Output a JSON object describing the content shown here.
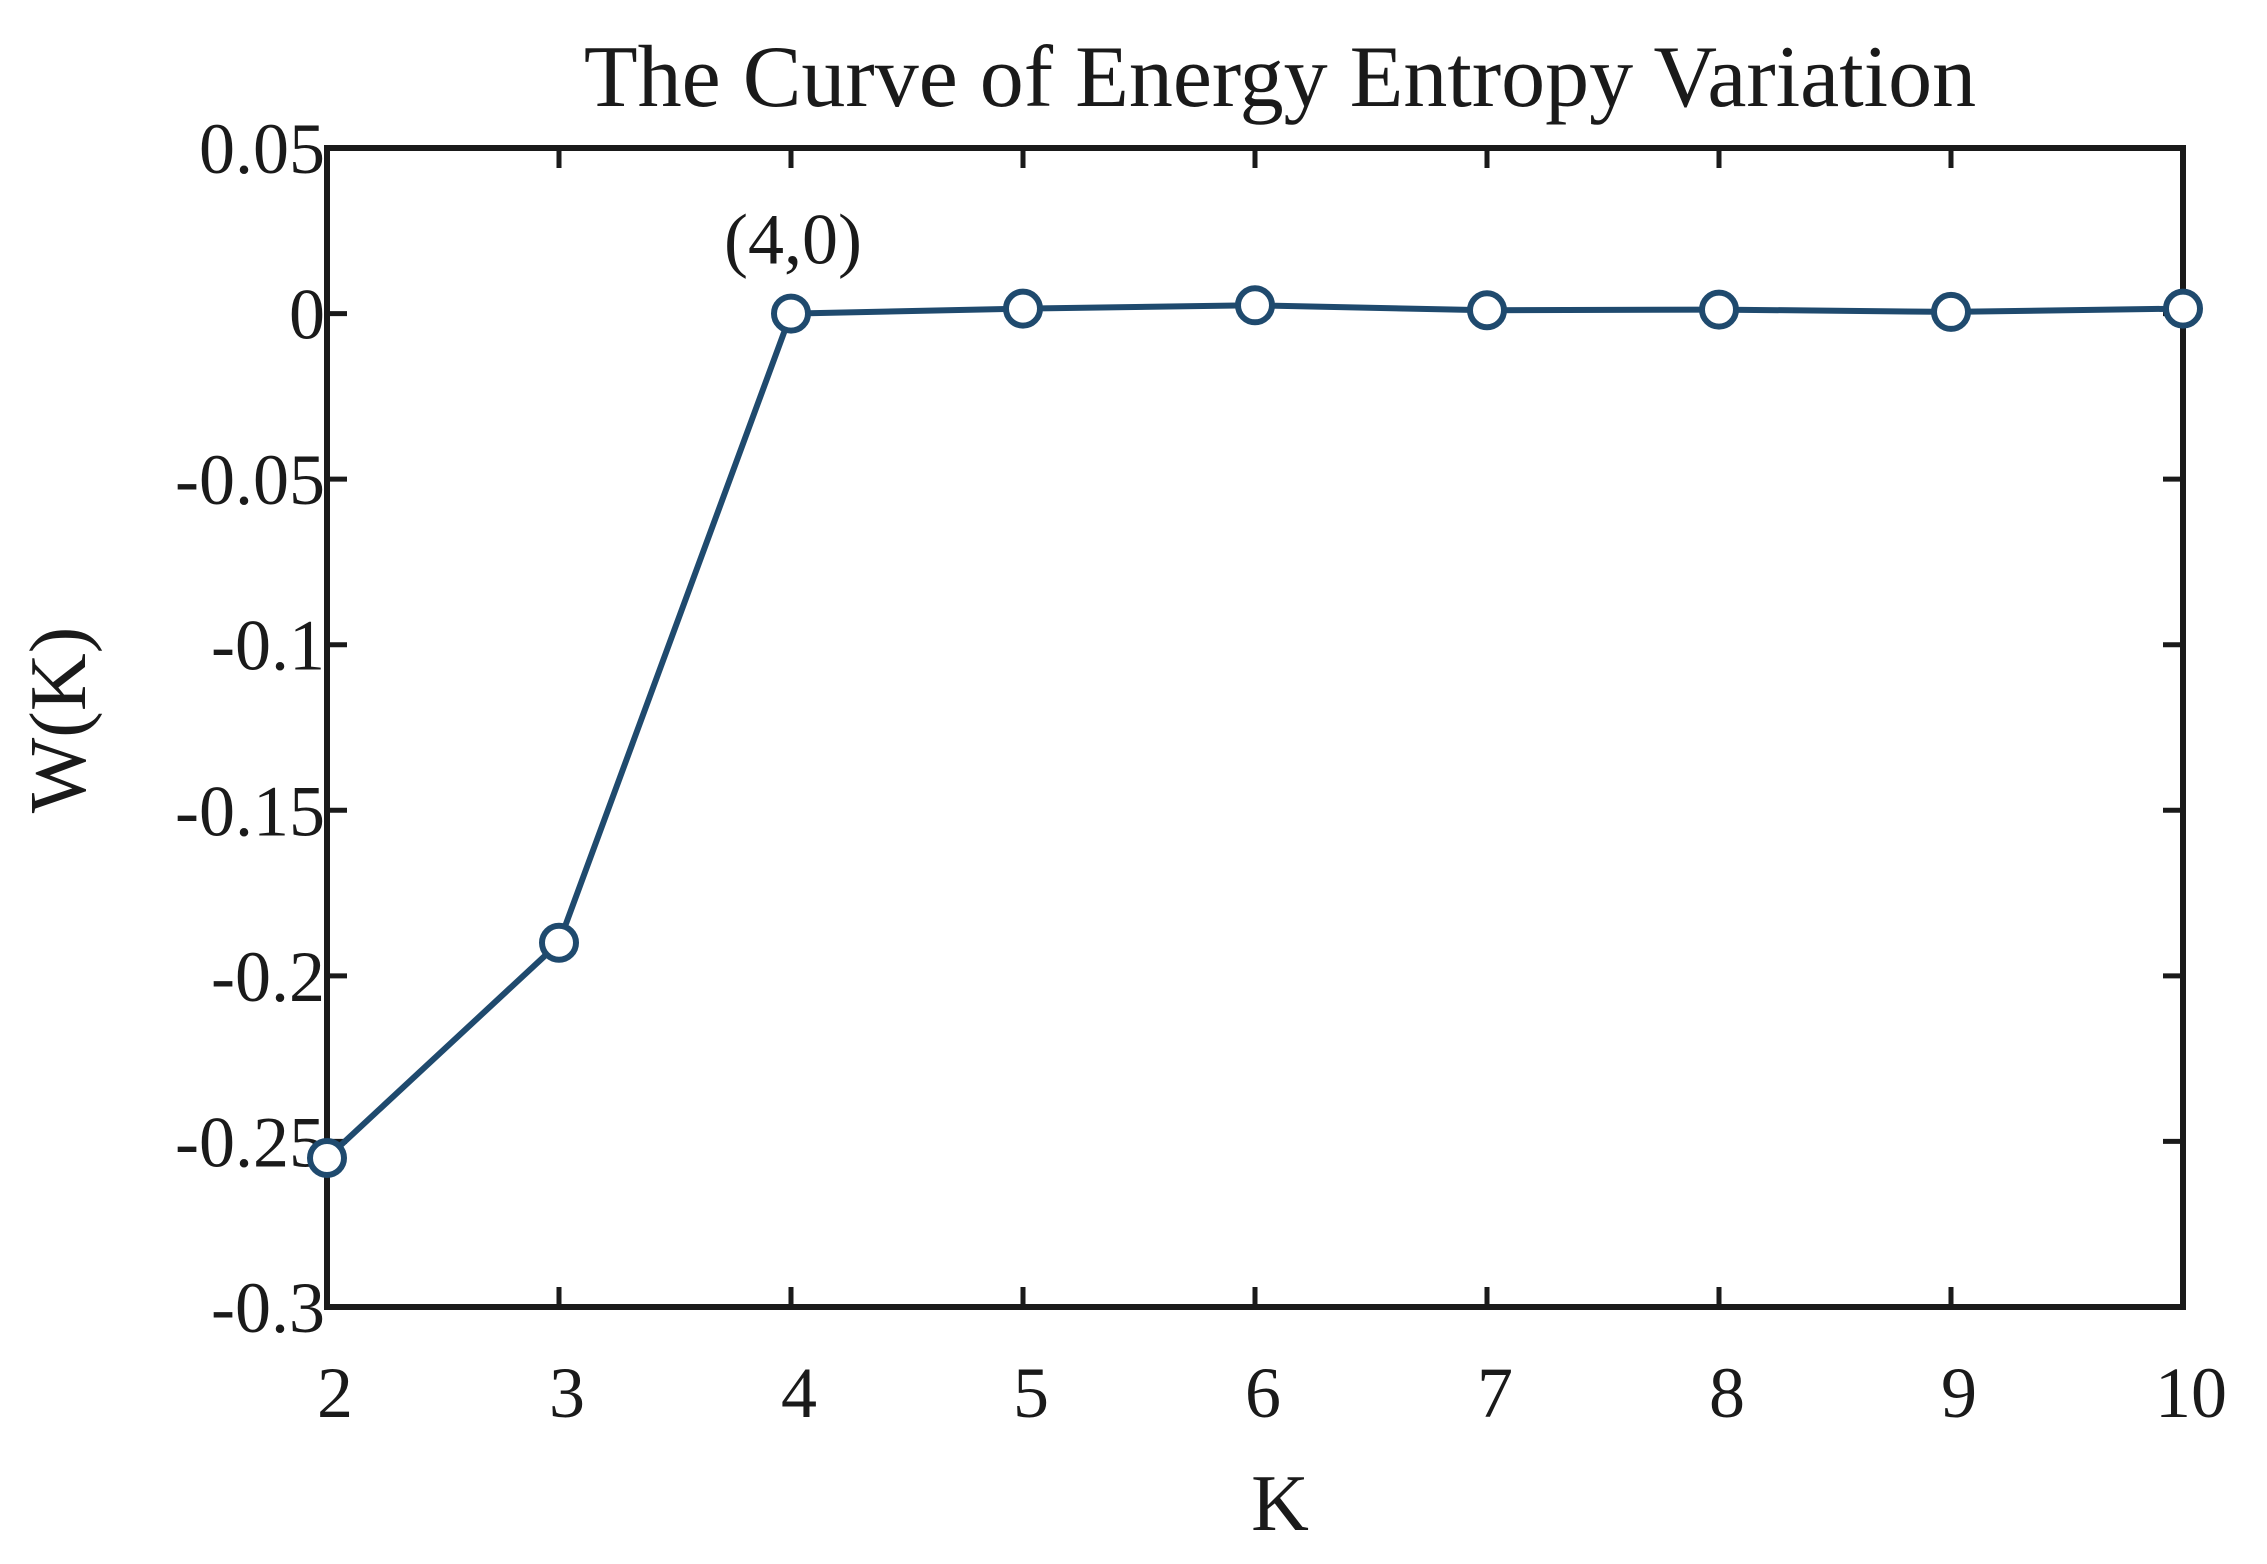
{
  "chart_data": {
    "type": "line",
    "title": "The Curve of Energy Entropy Variation",
    "xlabel": "K",
    "ylabel": "W(K)",
    "xlim": [
      2,
      10
    ],
    "ylim": [
      -0.3,
      0.05
    ],
    "xticks": [
      2,
      3,
      4,
      5,
      6,
      7,
      8,
      9,
      10
    ],
    "xtick_labels": [
      "2",
      "3",
      "4",
      "5",
      "6",
      "7",
      "8",
      "9",
      "10"
    ],
    "yticks": [
      0.05,
      0,
      -0.05,
      -0.1,
      -0.15,
      -0.2,
      -0.25,
      -0.3
    ],
    "ytick_labels": [
      "0.05",
      "0",
      "-0.05",
      "-0.1",
      "-0.15",
      "-0.2",
      "-0.25",
      "-0.3"
    ],
    "grid": false,
    "series": [
      {
        "name": "W(K)",
        "marker": "circle",
        "color": "#1f4a6e",
        "x": [
          2,
          3,
          4,
          5,
          6,
          7,
          8,
          9,
          10
        ],
        "y": [
          -0.255,
          -0.19,
          0.0,
          0.0015,
          0.0025,
          0.001,
          0.0012,
          0.0005,
          0.0015
        ]
      }
    ],
    "annotations": [
      {
        "text": "(4,0)",
        "x": 4,
        "y": 0
      }
    ]
  }
}
